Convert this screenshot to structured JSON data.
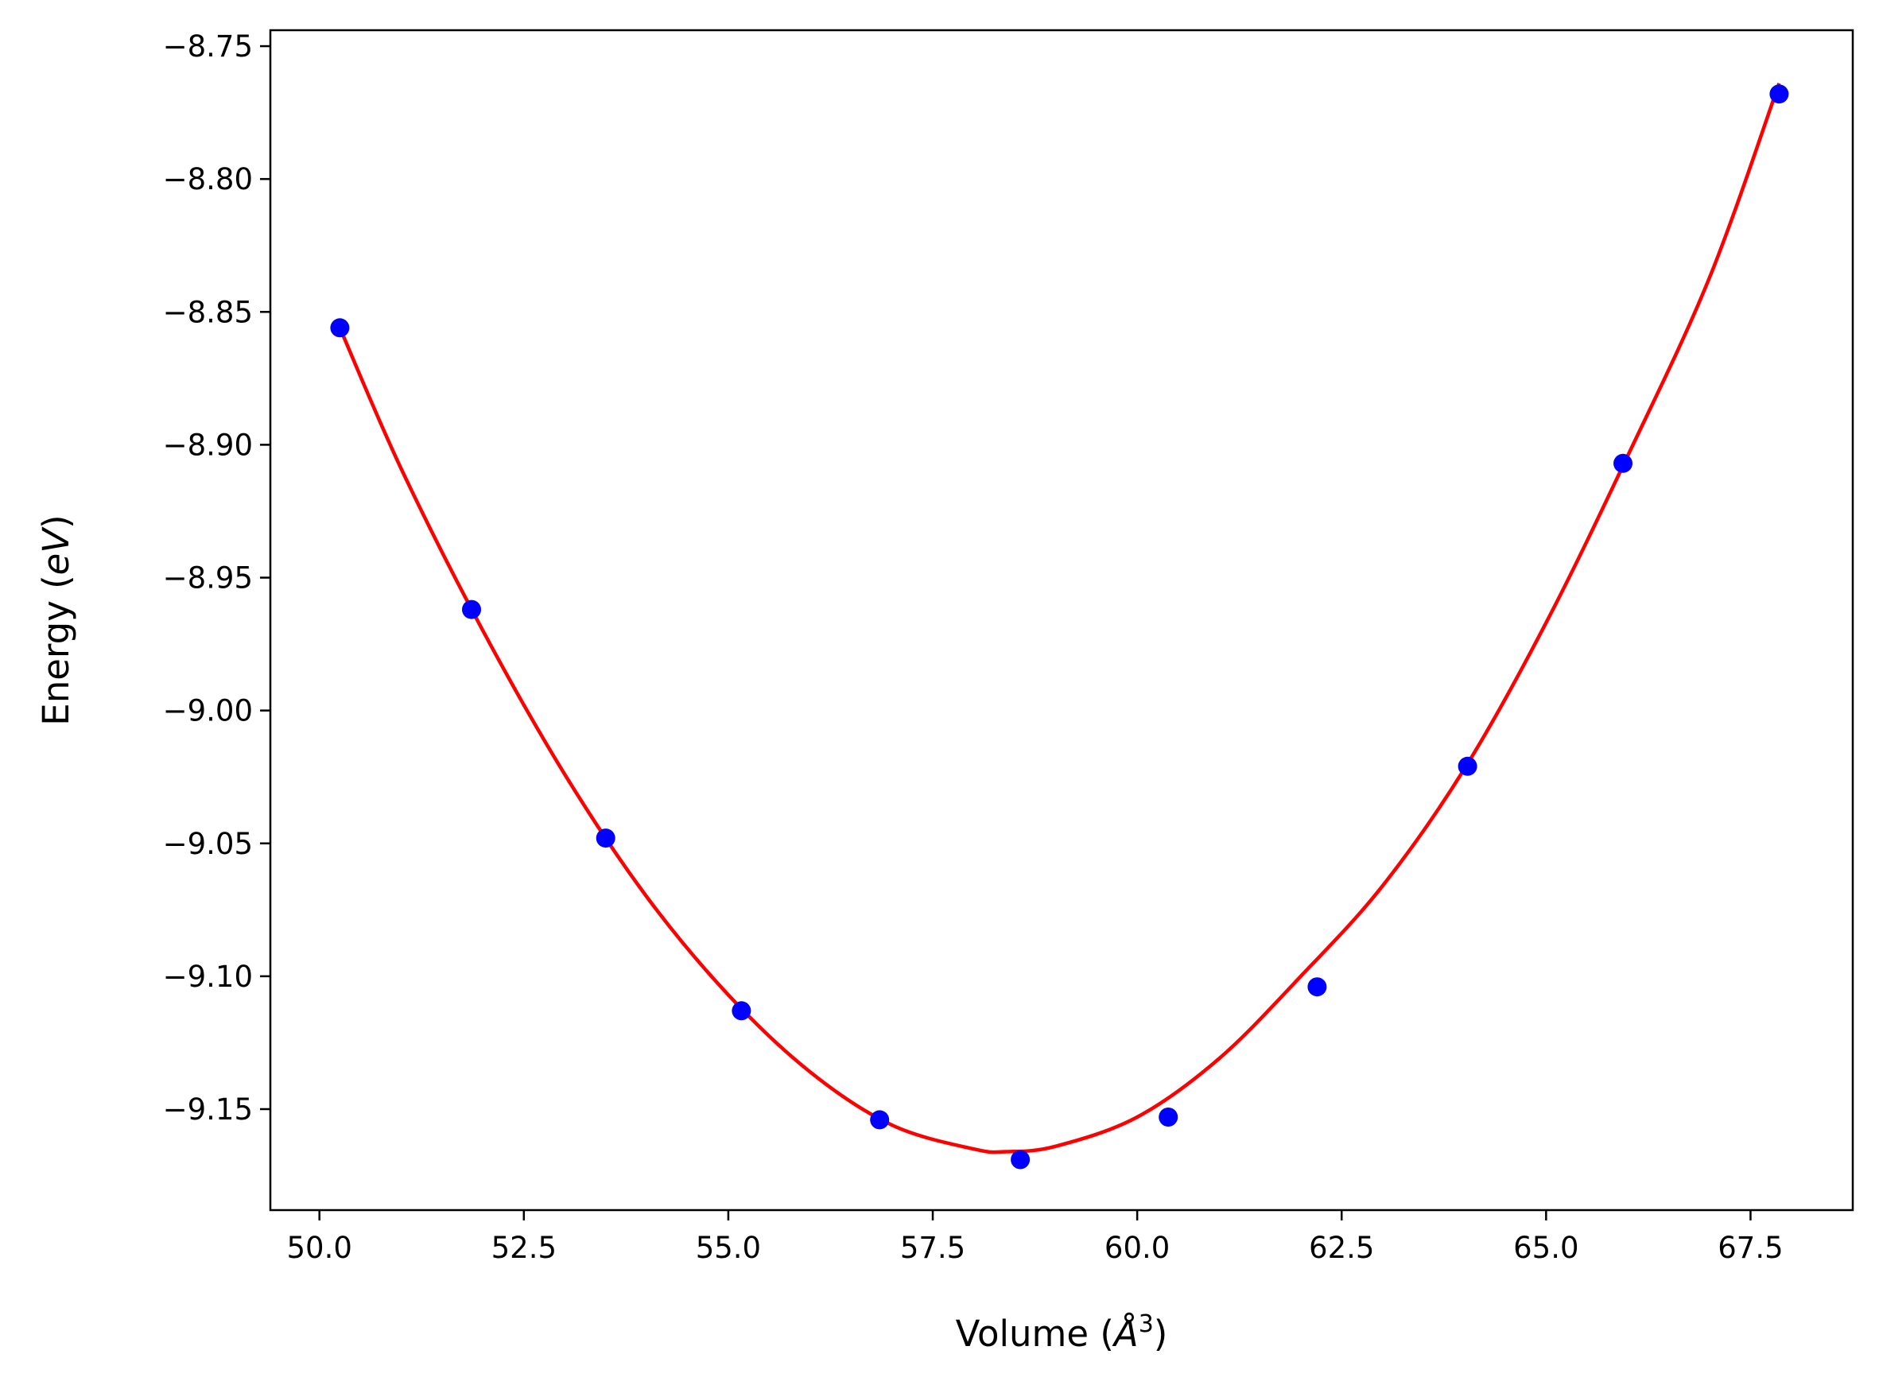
{
  "chart_data": {
    "type": "scatter",
    "title": "",
    "xlabel": "Volume (",
    "xlabel_symbol": "Å",
    "xlabel_exp": "3",
    "xlabel_close": ")",
    "ylabel": "Energy (",
    "ylabel_unit": "eV",
    "ylabel_close": ")",
    "xlim": [
      49.4,
      68.75
    ],
    "ylim": [
      -9.188,
      -8.744
    ],
    "xticks": [
      50.0,
      52.5,
      55.0,
      57.5,
      60.0,
      62.5,
      65.0,
      67.5
    ],
    "xtick_labels": [
      "50.0",
      "52.5",
      "55.0",
      "57.5",
      "60.0",
      "62.5",
      "65.0",
      "67.5"
    ],
    "yticks": [
      -9.15,
      -9.1,
      -9.05,
      -9.0,
      -8.95,
      -8.9,
      -8.85,
      -8.8,
      -8.75
    ],
    "ytick_labels": [
      "−9.15",
      "−9.10",
      "−9.05",
      "−9.00",
      "−8.95",
      "−8.90",
      "−8.85",
      "−8.80",
      "−8.75"
    ],
    "grid": false,
    "series": [
      {
        "kind": "points",
        "color": "#0000ff",
        "x": [
          50.25,
          51.86,
          53.5,
          55.16,
          56.85,
          58.57,
          60.38,
          62.2,
          64.04,
          65.94,
          67.85
        ],
        "y": [
          -8.856,
          -8.962,
          -9.048,
          -9.113,
          -9.154,
          -9.169,
          -9.153,
          -9.104,
          -9.021,
          -8.907,
          -8.768
        ]
      },
      {
        "kind": "fit-curve",
        "color": "#ff0000",
        "x": [
          50.25,
          51.0,
          52.0,
          53.0,
          54.0,
          55.0,
          56.0,
          57.0,
          58.0,
          58.4,
          59.0,
          60.0,
          61.0,
          62.0,
          63.0,
          64.0,
          65.0,
          66.0,
          67.0,
          67.85
        ],
        "y": [
          -8.856,
          -8.909,
          -8.97,
          -9.024,
          -9.07,
          -9.107,
          -9.136,
          -9.156,
          -9.165,
          -9.166,
          -9.164,
          -9.153,
          -9.131,
          -9.1,
          -9.066,
          -9.022,
          -8.967,
          -8.904,
          -8.837,
          -8.764
        ]
      }
    ]
  }
}
